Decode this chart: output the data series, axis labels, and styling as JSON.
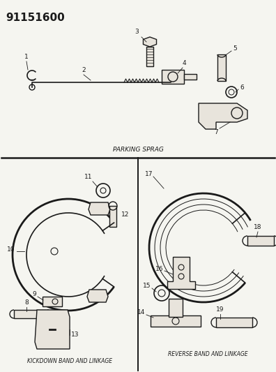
{
  "title_number": "91151600",
  "bg_color": "#f5f5f0",
  "line_color": "#1a1a1a",
  "part_fill": "#e8e4dc",
  "section1_label": "PARKING SPRAG",
  "section2_label": "KICKDOWN BAND AND LINKAGE",
  "section3_label": "REVERSE BAND AND LINKAGE",
  "fig_w": 3.96,
  "fig_h": 5.33,
  "dpi": 100
}
